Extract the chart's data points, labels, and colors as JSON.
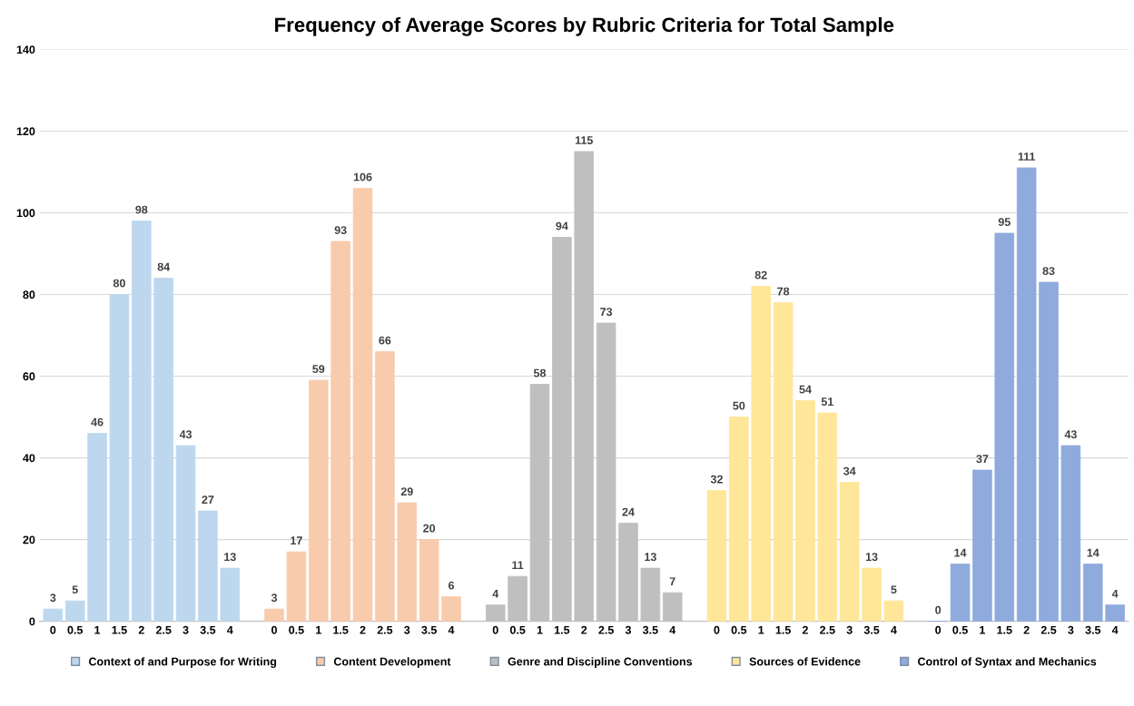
{
  "chart_data": {
    "type": "bar",
    "title": "Frequency of Average Scores by Rubric Criteria for Total Sample",
    "categories": [
      "0",
      "0.5",
      "1",
      "1.5",
      "2",
      "2.5",
      "3",
      "3.5",
      "4",
      null,
      "0",
      "0.5",
      "1",
      "1.5",
      "2",
      "2.5",
      "3",
      "3.5",
      "4",
      null,
      "0",
      "0.5",
      "1",
      "1.5",
      "2",
      "2.5",
      "3",
      "3.5",
      "4",
      null,
      "0",
      "0.5",
      "1",
      "1.5",
      "2",
      "2.5",
      "3",
      "3.5",
      "4",
      null,
      "0",
      "0.5",
      "1",
      "1.5",
      "2",
      "2.5",
      "3",
      "3.5",
      "4"
    ],
    "series": [
      {
        "name": "Context of and Purpose for Writing",
        "color": "#bdd7ee",
        "values": [
          3,
          5,
          46,
          80,
          98,
          84,
          43,
          27,
          13,
          null,
          null,
          null,
          null,
          null,
          null,
          null,
          null,
          null,
          null,
          null,
          null,
          null,
          null,
          null,
          null,
          null,
          null,
          null,
          null,
          null,
          null,
          null,
          null,
          null,
          null,
          null,
          null,
          null,
          null,
          null,
          null,
          null,
          null,
          null,
          null,
          null,
          null,
          null,
          null
        ]
      },
      {
        "name": "Content Development",
        "color": "#f8cbad",
        "values": [
          null,
          null,
          null,
          null,
          null,
          null,
          null,
          null,
          null,
          null,
          3,
          17,
          59,
          93,
          106,
          66,
          29,
          20,
          6,
          null,
          null,
          null,
          null,
          null,
          null,
          null,
          null,
          null,
          null,
          null,
          null,
          null,
          null,
          null,
          null,
          null,
          null,
          null,
          null,
          null,
          null,
          null,
          null,
          null,
          null,
          null,
          null,
          null,
          null
        ]
      },
      {
        "name": "Genre and Discipline Conventions",
        "color": "#bfbfbf",
        "values": [
          null,
          null,
          null,
          null,
          null,
          null,
          null,
          null,
          null,
          null,
          null,
          null,
          null,
          null,
          null,
          null,
          null,
          null,
          null,
          null,
          4,
          11,
          58,
          94,
          115,
          73,
          24,
          13,
          7,
          null,
          null,
          null,
          null,
          null,
          null,
          null,
          null,
          null,
          null,
          null,
          null,
          null,
          null,
          null,
          null,
          null,
          null,
          null,
          null
        ]
      },
      {
        "name": "Sources of Evidence",
        "color": "#ffe699",
        "values": [
          null,
          null,
          null,
          null,
          null,
          null,
          null,
          null,
          null,
          null,
          null,
          null,
          null,
          null,
          null,
          null,
          null,
          null,
          null,
          null,
          null,
          null,
          null,
          null,
          null,
          null,
          null,
          null,
          null,
          null,
          32,
          50,
          82,
          78,
          54,
          51,
          34,
          13,
          5,
          null,
          null,
          null,
          null,
          null,
          null,
          null,
          null,
          null,
          null
        ]
      },
      {
        "name": "Control of Syntax and Mechanics",
        "color": "#8faadc",
        "values": [
          null,
          null,
          null,
          null,
          null,
          null,
          null,
          null,
          null,
          null,
          null,
          null,
          null,
          null,
          null,
          null,
          null,
          null,
          null,
          null,
          null,
          null,
          null,
          null,
          null,
          null,
          null,
          null,
          null,
          null,
          null,
          null,
          null,
          null,
          null,
          null,
          null,
          null,
          null,
          null,
          0,
          14,
          37,
          95,
          111,
          83,
          43,
          14,
          4
        ]
      }
    ],
    "ylim": [
      0,
      140
    ],
    "yticks": [
      0,
      20,
      40,
      60,
      80,
      100,
      120,
      140
    ],
    "grid": "y",
    "legend": "bottom",
    "data_labels": true
  }
}
